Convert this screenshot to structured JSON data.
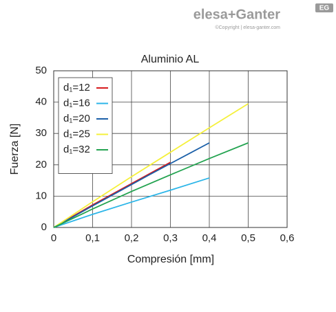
{
  "brand": {
    "name": "elesa+Ganter",
    "copyright": "©Copyright | elesa-ganter.com",
    "badge": "EG"
  },
  "chart_data": {
    "type": "line",
    "title": "Aluminio AL",
    "x_label": "Compresión [mm]",
    "y_label": "Fuerza [N]",
    "xlim": [
      0,
      0.6
    ],
    "ylim": [
      0,
      50
    ],
    "xticks": [
      0,
      {
        "value": 0.1,
        "label": "0,1"
      },
      {
        "value": 0.2,
        "label": "0,2"
      },
      {
        "value": 0.3,
        "label": "0,3"
      },
      {
        "value": 0.4,
        "label": "0,4"
      },
      {
        "value": 0.5,
        "label": "0,5"
      },
      {
        "value": 0.6,
        "label": "0,6"
      }
    ],
    "yticks": [
      0,
      10,
      20,
      30,
      40,
      50
    ],
    "grid": true,
    "legend": "upper left",
    "series": [
      {
        "name": "d₁=12",
        "color": "#d7191c",
        "x": [
          0,
          0.05,
          0.1,
          0.15,
          0.2,
          0.25,
          0.3
        ],
        "values": [
          0,
          3.6,
          7.2,
          10.6,
          14,
          17.4,
          20.8
        ]
      },
      {
        "name": "d₁=16",
        "color": "#2bb5e8",
        "x": [
          0,
          0.1,
          0.2,
          0.3,
          0.4
        ],
        "values": [
          0,
          4.2,
          8.1,
          11.9,
          15.8
        ]
      },
      {
        "name": "d₁=20",
        "color": "#1a5fa8",
        "x": [
          0,
          0.05,
          0.1,
          0.15,
          0.2,
          0.25,
          0.3,
          0.35,
          0.4
        ],
        "values": [
          0,
          3.4,
          6.9,
          10.3,
          13.7,
          17.1,
          20.4,
          23.7,
          27
        ]
      },
      {
        "name": "d₁=25",
        "color": "#f5f03a",
        "x": [
          0,
          0.1,
          0.2,
          0.3,
          0.4,
          0.5
        ],
        "values": [
          0,
          8.2,
          16.2,
          24,
          31.8,
          39.5
        ]
      },
      {
        "name": "d₁=32",
        "color": "#23a350",
        "x": [
          0,
          0.1,
          0.2,
          0.3,
          0.4,
          0.5
        ],
        "values": [
          0,
          5.9,
          11.5,
          16.8,
          22,
          27
        ]
      }
    ]
  }
}
